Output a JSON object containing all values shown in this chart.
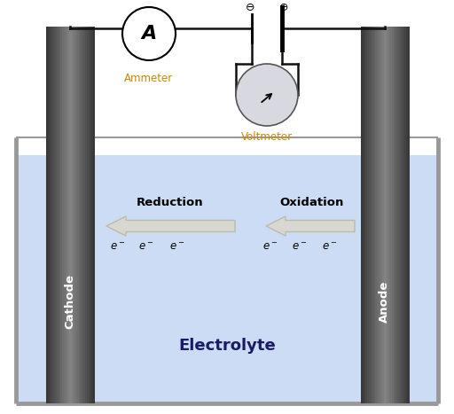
{
  "bg_color": "#ffffff",
  "electrolyte_color": "#ccdcf4",
  "tank_border_color": "#999999",
  "wire_color": "#111111",
  "arrow_fc": "#d8d8d0",
  "arrow_ec": "#bbbbaa",
  "ammeter_label": "Ammeter",
  "voltmeter_label": "Voltmeter",
  "cathode_label": "Cathode",
  "anode_label": "Anode",
  "electrolyte_label": "Electrolyte",
  "reduction_label": "Reduction",
  "oxidation_label": "Oxidation",
  "label_color": "#cc8800",
  "electrode_dark": 0.22,
  "electrode_mid": 0.52,
  "fig_width": 5.12,
  "fig_height": 4.67,
  "dpi": 100
}
